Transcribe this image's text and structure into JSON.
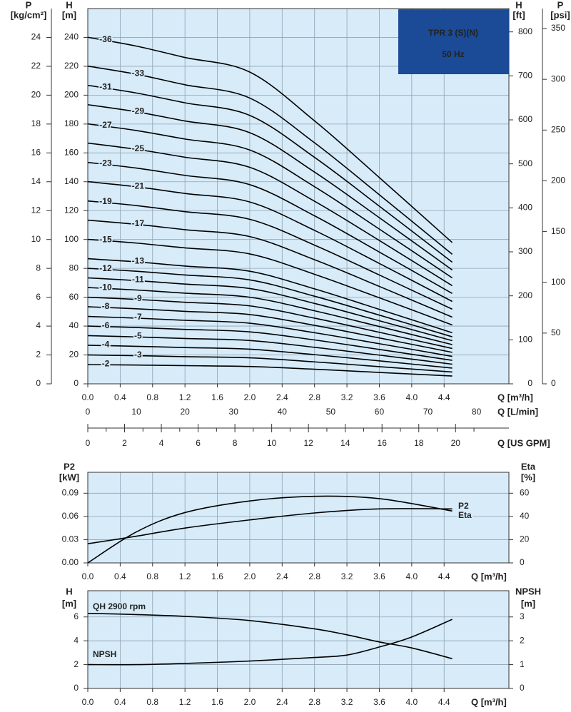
{
  "chart_data": [
    {
      "type": "line",
      "title": "TPR 3 (S)(N)",
      "subtitle": "50 Hz",
      "color": "#000000",
      "grid": true,
      "x_label": "Q [m³/h]",
      "y_label": "H",
      "y_unit": "[m]",
      "x": [
        0,
        0.6,
        1.2,
        2,
        2.8,
        3.6,
        4.5
      ],
      "xlim": [
        0,
        5.2
      ],
      "xticks": [
        {
          "value": 0,
          "label": "0.0"
        },
        0.4,
        0.8,
        1.2,
        1.6,
        {
          "value": 2,
          "label": "2.0"
        },
        2.4,
        2.8,
        3.2,
        3.6,
        {
          "value": 4,
          "label": "4.0"
        },
        4.4
      ],
      "ylim": [
        0,
        260
      ],
      "yticks": [
        0,
        20,
        40,
        60,
        80,
        100,
        120,
        140,
        160,
        180,
        200,
        220,
        240
      ],
      "secondary_y_axes": [
        {
          "side": "left",
          "label": "P",
          "unit": "[kg/cm²]",
          "lim": [
            0,
            26
          ],
          "ticks": [
            0,
            2,
            4,
            6,
            8,
            10,
            12,
            14,
            16,
            18,
            20,
            22,
            24
          ]
        },
        {
          "side": "right",
          "label": "H",
          "unit": "[ft]",
          "lim": [
            0,
            853
          ],
          "ticks": [
            0,
            100,
            200,
            300,
            400,
            500,
            600,
            700,
            800
          ]
        },
        {
          "side": "right",
          "label": "P",
          "unit": "[psi]",
          "lim": [
            0,
            369.7
          ],
          "ticks": [
            0,
            50,
            100,
            150,
            200,
            250,
            300,
            350
          ]
        }
      ],
      "secondary_x_axes": [
        {
          "label": "Q [L/min]",
          "lim": [
            0,
            86.67
          ],
          "ticks": [
            0,
            10,
            20,
            30,
            40,
            50,
            60,
            70,
            80
          ]
        },
        {
          "label": "Q [US GPM]",
          "lim": [
            0,
            22.9
          ],
          "ticks": [
            0,
            2,
            4,
            6,
            8,
            10,
            12,
            14,
            16,
            18,
            20
          ],
          "minor_ticks": [
            1,
            3,
            5,
            7,
            9,
            11,
            13,
            15,
            17,
            19,
            21
          ]
        }
      ],
      "series": [
        {
          "name": "-36",
          "values": [
            240.1,
            234.0,
            226.1,
            216.0,
            182.2,
            142.9,
            97.9
          ]
        },
        {
          "name": "-33",
          "values": [
            220.1,
            214.5,
            207.2,
            198.0,
            167.0,
            131.0,
            89.8
          ]
        },
        {
          "name": "-31",
          "values": [
            206.8,
            201.5,
            194.7,
            186.0,
            156.9,
            123.1,
            84.3
          ]
        },
        {
          "name": "-29",
          "values": [
            193.4,
            188.5,
            182.1,
            174.0,
            146.7,
            115.1,
            78.9
          ]
        },
        {
          "name": "-27",
          "values": [
            180.1,
            175.5,
            169.6,
            162.0,
            136.6,
            107.2,
            73.4
          ]
        },
        {
          "name": "-25",
          "values": [
            166.8,
            162.5,
            157.0,
            150.0,
            126.5,
            99.3,
            68.0
          ]
        },
        {
          "name": "-23",
          "values": [
            153.4,
            149.5,
            144.4,
            138.0,
            116.4,
            91.3,
            62.6
          ]
        },
        {
          "name": "-21",
          "values": [
            140.1,
            136.5,
            131.9,
            126.0,
            106.3,
            83.4,
            57.1
          ]
        },
        {
          "name": "-19",
          "values": [
            126.7,
            123.5,
            119.3,
            114.0,
            96.1,
            75.4,
            51.7
          ]
        },
        {
          "name": "-17",
          "values": [
            113.4,
            110.5,
            106.8,
            102.0,
            86.0,
            67.5,
            46.2
          ]
        },
        {
          "name": "-15",
          "values": [
            100.1,
            97.5,
            94.2,
            90.0,
            75.9,
            59.6,
            40.8
          ]
        },
        {
          "name": "-13",
          "values": [
            86.7,
            84.5,
            81.6,
            78.0,
            65.8,
            51.6,
            35.4
          ]
        },
        {
          "name": "-12",
          "values": [
            80.0,
            78.0,
            75.4,
            72.0,
            60.7,
            47.6,
            32.6
          ]
        },
        {
          "name": "-11",
          "values": [
            73.4,
            71.5,
            69.1,
            66.0,
            55.7,
            43.7,
            29.9
          ]
        },
        {
          "name": "-10",
          "values": [
            66.7,
            65.0,
            62.8,
            60.0,
            50.6,
            39.7,
            27.2
          ]
        },
        {
          "name": "-9",
          "values": [
            60.0,
            58.5,
            56.5,
            54.0,
            45.5,
            35.7,
            24.5
          ]
        },
        {
          "name": "-8",
          "values": [
            53.4,
            52.0,
            50.2,
            48.0,
            40.5,
            31.8,
            21.8
          ]
        },
        {
          "name": "-7",
          "values": [
            46.7,
            45.5,
            44.0,
            42.0,
            35.4,
            27.8,
            19.0
          ]
        },
        {
          "name": "-6",
          "values": [
            40.0,
            39.0,
            37.7,
            36.0,
            30.4,
            23.8,
            16.3
          ]
        },
        {
          "name": "-5",
          "values": [
            33.4,
            32.5,
            31.4,
            30.0,
            25.3,
            19.9,
            13.6
          ]
        },
        {
          "name": "-4",
          "values": [
            26.7,
            26.0,
            25.1,
            24.0,
            20.2,
            15.9,
            10.9
          ]
        },
        {
          "name": "-3",
          "values": [
            20.0,
            19.5,
            18.8,
            18.0,
            15.2,
            11.9,
            8.2
          ]
        },
        {
          "name": "-2",
          "values": [
            13.3,
            13.0,
            12.6,
            12.0,
            10.1,
            7.9,
            5.4
          ]
        }
      ]
    },
    {
      "type": "line",
      "color": "#000000",
      "grid": true,
      "x_label": "Q [m³/h]",
      "y_label": "P2",
      "y_unit": "[kW]",
      "y2_label": "Eta",
      "y2_unit": "[%]",
      "x": [
        0,
        0.6,
        1.2,
        2,
        2.8,
        3.6,
        4.5
      ],
      "xlim": [
        0,
        5.2
      ],
      "xticks": [
        {
          "value": 0,
          "label": "0.0"
        },
        0.4,
        0.8,
        1.2,
        1.6,
        {
          "value": 2,
          "label": "2.0"
        },
        2.4,
        2.8,
        3.2,
        3.6,
        {
          "value": 4,
          "label": "4.0"
        },
        4.4
      ],
      "ylim": [
        0,
        0.117
      ],
      "yticks": [
        {
          "value": 0,
          "label": "0.00"
        },
        0.03,
        0.06,
        0.09
      ],
      "y2lim": [
        0,
        78
      ],
      "y2ticks": [
        0,
        20,
        40,
        60
      ],
      "series": [
        {
          "name": "P2",
          "values": [
            0,
            0.04,
            0.065,
            0.08,
            0.086,
            0.083,
            0.067
          ]
        },
        {
          "name": "Eta",
          "axis": "y2",
          "values": [
            16.5,
            23,
            30,
            37,
            43,
            46.5,
            46.5
          ]
        }
      ]
    },
    {
      "type": "line",
      "color": "#000000",
      "grid": true,
      "x_label": "Q [m³/h]",
      "y_label": "H",
      "y_unit": "[m]",
      "y2_label": "NPSH",
      "y2_unit": "[m]",
      "x": [
        0,
        0.6,
        1.2,
        2,
        2.8,
        3.2,
        3.6,
        4,
        4.5
      ],
      "xlim": [
        0,
        5.2
      ],
      "xticks": [
        {
          "value": 0,
          "label": "0.0"
        },
        0.4,
        0.8,
        1.2,
        1.6,
        {
          "value": 2,
          "label": "2.0"
        },
        2.4,
        2.8,
        3.2,
        3.6,
        {
          "value": 4,
          "label": "4.0"
        },
        4.4
      ],
      "ylim": [
        0,
        8.2
      ],
      "yticks": [
        0,
        2,
        4,
        6
      ],
      "y2lim": [
        0,
        4.1
      ],
      "y2ticks": [
        0,
        1,
        2,
        3
      ],
      "series": [
        {
          "name": "QH 2900 rpm",
          "values": [
            6.3,
            6.2,
            6.05,
            5.7,
            5.0,
            4.5,
            3.9,
            3.4,
            2.5
          ]
        },
        {
          "name": "NPSH",
          "axis": "y2",
          "values": [
            1.0,
            1.0,
            1.05,
            1.15,
            1.3,
            1.4,
            1.74,
            2.16,
            2.9
          ]
        }
      ]
    }
  ]
}
